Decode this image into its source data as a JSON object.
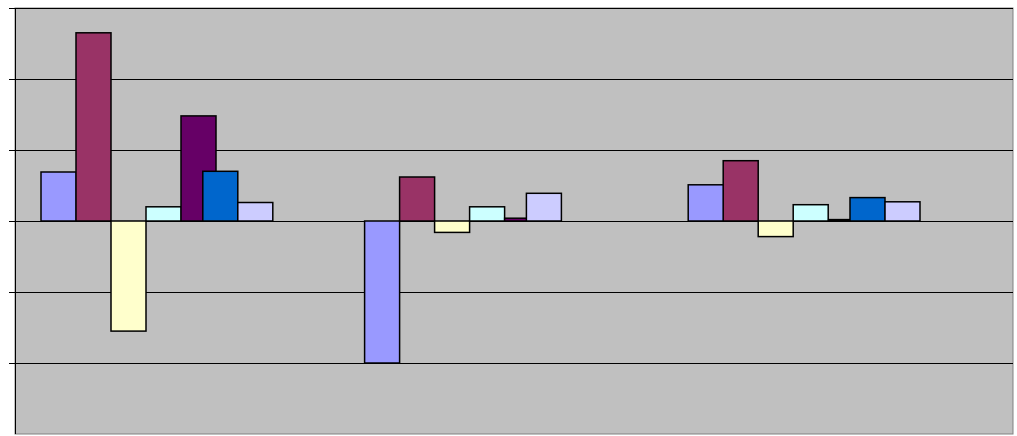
{
  "chart_data": {
    "type": "bar",
    "title": "",
    "xlabel": "",
    "ylabel": "",
    "ylim": [
      -3,
      3
    ],
    "y_ticks": [
      -3,
      -2,
      -1,
      0,
      1,
      2,
      3
    ],
    "grid": true,
    "legend": "none",
    "categories": [
      "",
      "",
      "",
      "",
      "",
      ""
    ],
    "series": [
      {
        "color": "#9999ff",
        "values": [
          0.69,
          null,
          -2.0,
          null,
          0.51,
          null
        ]
      },
      {
        "color": "#993366",
        "values": [
          2.65,
          null,
          0.62,
          null,
          0.85,
          null
        ]
      },
      {
        "color": "#ffffcc",
        "values": [
          -1.55,
          null,
          -0.16,
          null,
          -0.22,
          null
        ]
      },
      {
        "color": "#ccffff",
        "values": [
          0.2,
          null,
          0.2,
          null,
          0.23,
          null
        ]
      },
      {
        "color": "#660066",
        "values": [
          1.48,
          null,
          0.04,
          null,
          0.02,
          null
        ]
      },
      {
        "color": "#0066cc",
        "values": [
          null,
          0.7,
          null,
          null,
          null,
          0.33
        ]
      },
      {
        "color": "#ccccff",
        "values": [
          null,
          0.26,
          null,
          0.39,
          null,
          0.27
        ]
      }
    ]
  },
  "style": {
    "plot_background": "#c0c0c0",
    "gridline_color": "#000000",
    "bar_outline": "#000000"
  }
}
